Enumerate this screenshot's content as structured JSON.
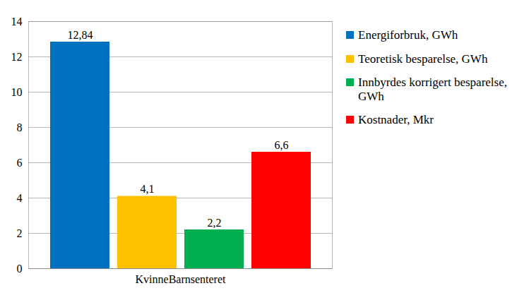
{
  "chart_data": {
    "type": "bar",
    "categories": [
      "KvinneBarnsenteret"
    ],
    "series": [
      {
        "name": "Energiforbruk, GWh",
        "color": "#0070c0",
        "values": [
          12.84
        ],
        "value_labels": [
          "12,84"
        ]
      },
      {
        "name": "Teoretisk besparelse, GWh",
        "color": "#ffc000",
        "values": [
          4.1
        ],
        "value_labels": [
          "4,1"
        ]
      },
      {
        "name": "Innbyrdes korrigert besparelse, GWh",
        "color": "#00b050",
        "values": [
          2.2
        ],
        "value_labels": [
          "2,2"
        ]
      },
      {
        "name": "Kostnader, Mkr",
        "color": "#ff0000",
        "values": [
          6.6
        ],
        "value_labels": [
          "6,6"
        ]
      }
    ],
    "ylim": [
      0,
      14
    ],
    "yticks": [
      0,
      2,
      4,
      6,
      8,
      10,
      12,
      14
    ],
    "grid": true,
    "legend": "right",
    "data_labels": true
  }
}
